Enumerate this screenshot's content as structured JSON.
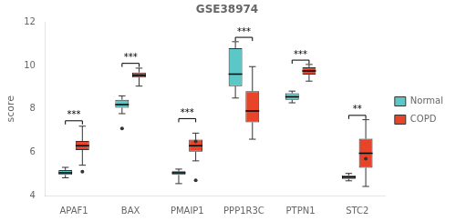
{
  "chart_data": {
    "type": "box",
    "title": "GSE38974",
    "y_label": "score",
    "categories": [
      "APAF1",
      "BAX",
      "PMAIP1",
      "PPP1R3C",
      "PTPN1",
      "STC2"
    ],
    "ylim": [
      4,
      12
    ],
    "yticks": [
      4,
      6,
      8,
      10,
      12
    ],
    "grid": false,
    "legend": "right",
    "series": [
      {
        "name": "Normal",
        "color": "#5BC8C8",
        "values": [
          {
            "median": 5.05,
            "q1": 4.95,
            "q3": 5.18,
            "whisker_low": 4.82,
            "whisker_high": 5.3,
            "fliers": []
          },
          {
            "median": 8.2,
            "q1": 8.05,
            "q3": 8.42,
            "whisker_low": 7.78,
            "whisker_high": 8.6,
            "fliers": [
              7.1
            ]
          },
          {
            "median": 5.05,
            "q1": 4.95,
            "q3": 5.12,
            "whisker_low": 4.55,
            "whisker_high": 5.22,
            "fliers": []
          },
          {
            "median": 9.6,
            "q1": 9.05,
            "q3": 10.8,
            "whisker_low": 8.5,
            "whisker_high": 11.1,
            "fliers": []
          },
          {
            "median": 8.55,
            "q1": 8.42,
            "q3": 8.72,
            "whisker_low": 8.28,
            "whisker_high": 8.82,
            "fliers": []
          },
          {
            "median": 4.85,
            "q1": 4.77,
            "q3": 4.93,
            "whisker_low": 4.68,
            "whisker_high": 5.02,
            "fliers": []
          }
        ]
      },
      {
        "name": "COPD",
        "color": "#E8442A",
        "values": [
          {
            "median": 6.3,
            "q1": 6.1,
            "q3": 6.52,
            "whisker_low": 5.4,
            "whisker_high": 7.2,
            "fliers": [
              5.1
            ]
          },
          {
            "median": 9.55,
            "q1": 9.45,
            "q3": 9.68,
            "whisker_low": 9.05,
            "whisker_high": 9.88,
            "fliers": []
          },
          {
            "median": 6.3,
            "q1": 6.02,
            "q3": 6.58,
            "whisker_low": 5.6,
            "whisker_high": 6.88,
            "fliers": [
              4.7,
              6.5
            ]
          },
          {
            "median": 7.9,
            "q1": 7.38,
            "q3": 8.82,
            "whisker_low": 6.6,
            "whisker_high": 9.95,
            "fliers": []
          },
          {
            "median": 9.75,
            "q1": 9.58,
            "q3": 9.92,
            "whisker_low": 9.28,
            "whisker_high": 10.05,
            "fliers": []
          },
          {
            "median": 5.95,
            "q1": 5.28,
            "q3": 6.62,
            "whisker_low": 4.42,
            "whisker_high": 7.5,
            "fliers": [
              5.7
            ]
          }
        ]
      }
    ],
    "significance": [
      {
        "category": "APAF1",
        "label": "***",
        "y": 7.45
      },
      {
        "category": "BAX",
        "label": "***",
        "y": 10.1
      },
      {
        "category": "PMAIP1",
        "label": "***",
        "y": 7.55
      },
      {
        "category": "PPP1R3C",
        "label": "***",
        "y": 11.3
      },
      {
        "category": "PTPN1",
        "label": "***",
        "y": 10.25
      },
      {
        "category": "STC2",
        "label": "**",
        "y": 7.7
      }
    ]
  }
}
